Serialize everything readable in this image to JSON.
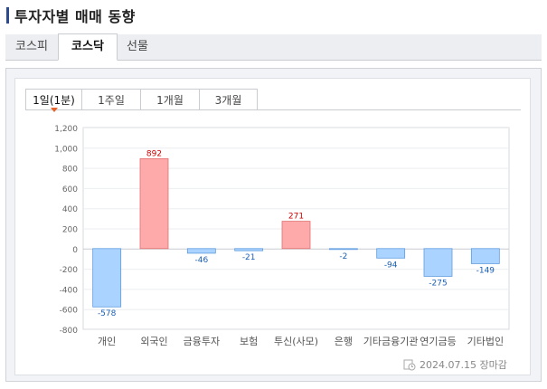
{
  "header": {
    "title": "투자자별 매매 동향"
  },
  "market_tabs": [
    {
      "label": "코스피",
      "active": false
    },
    {
      "label": "코스닥",
      "active": true
    },
    {
      "label": "선물",
      "active": false
    }
  ],
  "period_tabs": [
    {
      "label": "1일(1분)",
      "active": true
    },
    {
      "label": "1주일",
      "active": false
    },
    {
      "label": "1개월",
      "active": false
    },
    {
      "label": "3개월",
      "active": false
    }
  ],
  "chart_data": {
    "type": "bar",
    "categories": [
      "개인",
      "외국인",
      "금융투자",
      "보험",
      "투신(사모)",
      "은행",
      "기타금융기관",
      "연기금등",
      "기타법인"
    ],
    "values": [
      -578,
      892,
      -46,
      -21,
      271,
      -2,
      -94,
      -275,
      -149
    ],
    "ylim": [
      -800,
      1200
    ],
    "yticks": [
      "1,200",
      "1,000",
      "800",
      "600",
      "400",
      "200",
      "0",
      "-200",
      "-400",
      "-600",
      "-800"
    ],
    "ytick_values": [
      1200,
      1000,
      800,
      600,
      400,
      200,
      0,
      -200,
      -400,
      -600,
      -800
    ],
    "colors": {
      "positive": "#ffaaaa",
      "positive_stroke": "#e07070",
      "negative": "#aad4ff",
      "negative_stroke": "#5f9be0",
      "positive_label": "#cc0000",
      "negative_label": "#1a5fb4"
    },
    "grid": true
  },
  "footer": {
    "timestamp": "2024.07.15 장마감",
    "icon": "clock-icon"
  }
}
